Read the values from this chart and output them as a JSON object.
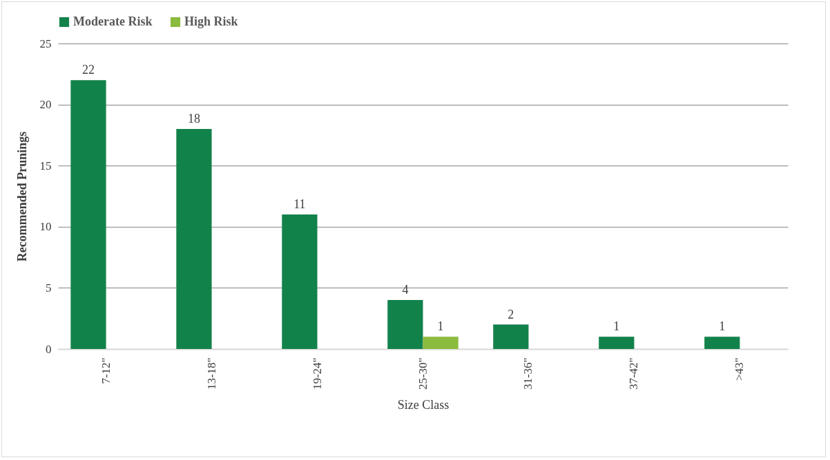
{
  "chart_data": {
    "type": "bar",
    "xlabel": "Size Class",
    "ylabel": "Recommended Prunings",
    "categories": [
      "7-12\"",
      "13-18\"",
      "19-24\"",
      "25-30\"",
      "31-36\"",
      "37-42\"",
      ">43\""
    ],
    "series": [
      {
        "name": "Moderate Risk",
        "color": "#12824b",
        "values": [
          22,
          18,
          11,
          4,
          2,
          1,
          1
        ]
      },
      {
        "name": "High Risk",
        "color": "#8bbb3f",
        "values": [
          null,
          null,
          null,
          1,
          null,
          null,
          null
        ]
      }
    ],
    "ylim": [
      0,
      25
    ],
    "yticks": [
      0,
      5,
      10,
      15,
      20,
      25
    ],
    "grid": "y",
    "legend": "top",
    "data_labels": true
  }
}
